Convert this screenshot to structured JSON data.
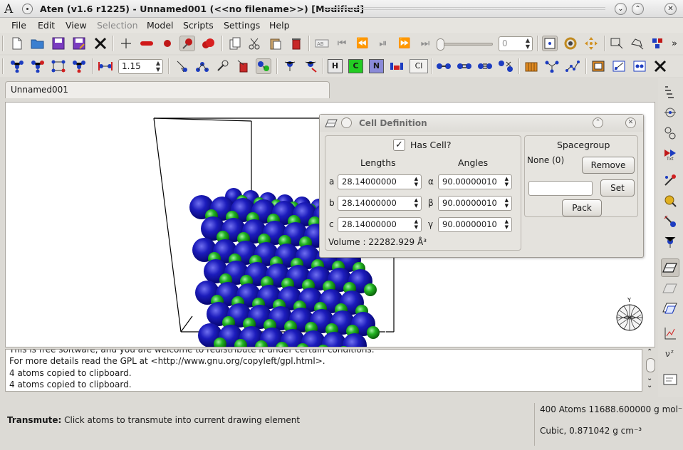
{
  "window": {
    "title": "Aten (v1.6 r1225) - Unnamed001 (<<no filename>>) [Modified]",
    "logo": "A"
  },
  "menu": {
    "items": [
      {
        "label": "File",
        "enabled": true
      },
      {
        "label": "Edit",
        "enabled": true
      },
      {
        "label": "View",
        "enabled": true
      },
      {
        "label": "Selection",
        "enabled": false
      },
      {
        "label": "Model",
        "enabled": true
      },
      {
        "label": "Scripts",
        "enabled": true
      },
      {
        "label": "Settings",
        "enabled": true
      },
      {
        "label": "Help",
        "enabled": true
      }
    ]
  },
  "toolbar": {
    "bond_tolerance": "1.15",
    "frame_value": "0",
    "elements": [
      {
        "symbol": "H",
        "color": "#e8e8e8"
      },
      {
        "symbol": "C",
        "color": "#22cc22"
      },
      {
        "symbol": "N",
        "color": "#8a8ad8"
      },
      {
        "symbol": "Cl",
        "color": "#e8e8e8"
      }
    ],
    "overflow": "»"
  },
  "tabs": [
    {
      "label": "Unnamed001"
    }
  ],
  "viewer": {
    "axis_label": "Y",
    "colors": {
      "blue_atom": "#1414b4",
      "green_atom": "#1eb41e"
    }
  },
  "cell_dialog": {
    "title": "Cell Definition",
    "has_cell_label": "Has Cell?",
    "has_cell": true,
    "lengths_header": "Lengths",
    "angles_header": "Angles",
    "rows": [
      {
        "axis": "a",
        "length": "28.14000000",
        "angle_symbol": "α",
        "angle": "90.00000010"
      },
      {
        "axis": "b",
        "length": "28.14000000",
        "angle_symbol": "β",
        "angle": "90.00000010"
      },
      {
        "axis": "c",
        "length": "28.14000000",
        "angle_symbol": "γ",
        "angle": "90.00000010"
      }
    ],
    "volume": "Volume : 22282.929 Å³",
    "spacegroup_header": "Spacegroup",
    "spacegroup_value": "None (0)",
    "remove_label": "Remove",
    "set_label": "Set",
    "pack_label": "Pack",
    "spacegroup_input": ""
  },
  "log": {
    "lines": [
      "This is free software, and you are welcome to redistribute it under certain conditions.",
      "For more details read the GPL at <http://www.gnu.org/copyleft/gpl.html>.",
      "4 atoms copied to clipboard.",
      "4 atoms copied to clipboard."
    ]
  },
  "status": {
    "mode_label": "Transmute:",
    "mode_text": "Click atoms to transmute into current drawing element",
    "atoms_mass": "400 Atoms 11688.600000 g mol⁻¹",
    "cell_density": "Cubic, 0.871042 g cm⁻³"
  }
}
